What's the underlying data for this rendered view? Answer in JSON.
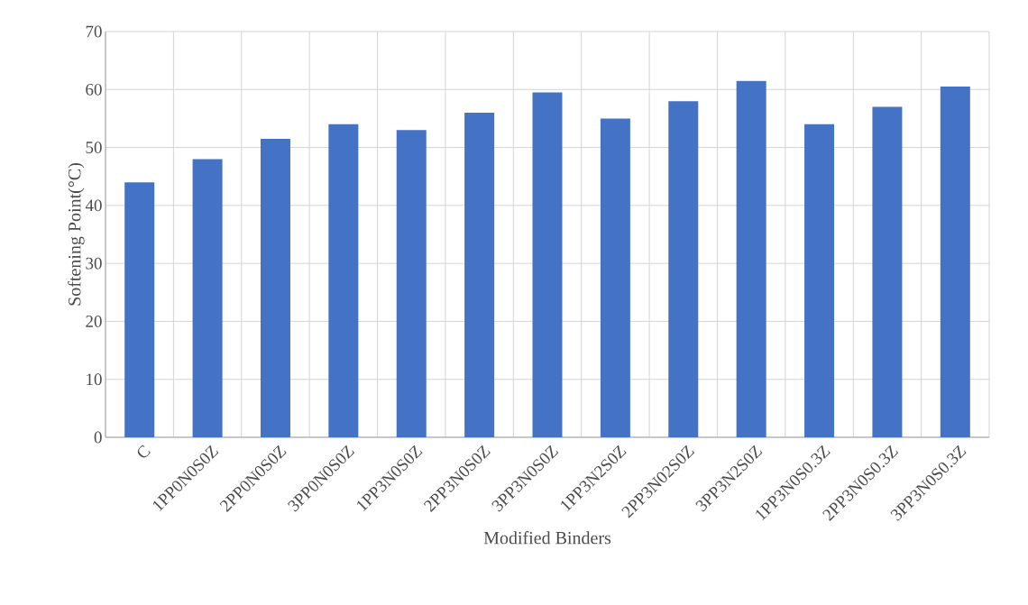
{
  "chart_data": {
    "type": "bar",
    "xlabel": "Modified Binders",
    "ylabel": "Softening Point(°C)",
    "categories": [
      "C",
      "1PP0N0S0Z",
      "2PP0N0S0Z",
      "3PP0N0S0Z",
      "1PP3N0S0Z",
      "2PP3N0S0Z",
      "3PP3N0S0Z",
      "1PP3N2S0Z",
      "2PP3N02S0Z",
      "3PP3N2S0Z",
      "1PP3N0S0.3Z",
      "2PP3N0S0.3Z",
      "3PP3N0S0.3Z"
    ],
    "values": [
      44,
      48,
      51.5,
      54,
      53,
      56,
      59.5,
      55,
      58,
      61.5,
      54,
      57,
      60.5
    ],
    "color": "#4472c4",
    "ylim": [
      0,
      70
    ],
    "yticks": [
      0,
      10,
      20,
      30,
      40,
      50,
      60,
      70
    ],
    "grid": true
  }
}
